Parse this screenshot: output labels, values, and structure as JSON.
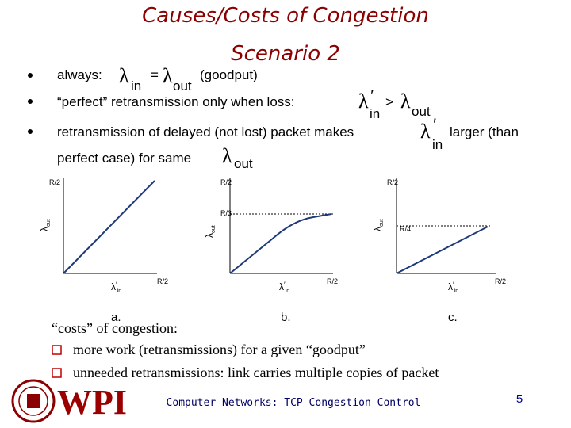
{
  "title": "Causes/Costs of Congestion",
  "subtitle": "Scenario 2",
  "bullets": [
    [
      "always:",
      "λ",
      "in",
      "=",
      "λ",
      "out",
      "(goodput)"
    ],
    [
      "“perfect” retransmission only when loss:",
      "λ",
      "′",
      "in",
      ">",
      "λ",
      "out"
    ],
    [
      "retransmission of delayed (not lost) packet makes",
      "λ",
      "′",
      "in",
      "larger (than",
      "perfect case) for same",
      "λ",
      "out"
    ]
  ],
  "graphs": [
    {
      "y_top": "R/2",
      "y_axis": [
        "λ",
        "out"
      ],
      "x_axis": [
        "λ",
        "′",
        "in"
      ],
      "x_end": "R/2",
      "caption": "a."
    },
    {
      "y_top": "R/2",
      "y_axis": [
        "λ",
        "out"
      ],
      "x_axis": [
        "λ",
        "′",
        "in"
      ],
      "x_end": "R/2",
      "limit": "R/3",
      "caption": "b."
    },
    {
      "y_top": "R/2",
      "y_axis": [
        "λ",
        "out"
      ],
      "x_axis": [
        "λ",
        "′",
        "in"
      ],
      "x_end": "R/2",
      "limit": "R/4",
      "caption": "c."
    }
  ],
  "costs": {
    "heading": "“costs” of congestion:",
    "items": [
      "more work (retransmissions) for a given “goodput”",
      "unneeded retransmissions: link carries multiple copies of packet"
    ]
  },
  "footer": {
    "logo": "WPI",
    "course": "Computer Networks: TCP Congestion Control",
    "page": 5
  }
}
